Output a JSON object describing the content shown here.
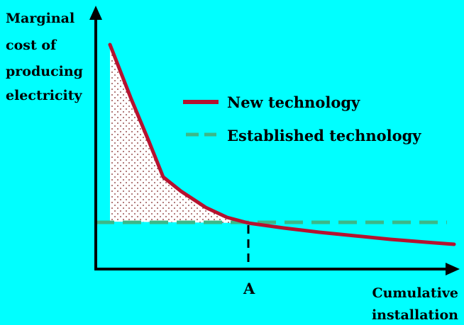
{
  "colors": {
    "background": "#00ffff",
    "new_technology": "#b5122f",
    "established_technology": "#3cb888",
    "axes": "#000000",
    "dot_fill": "#7a1f1f"
  },
  "y_axis_label_lines": [
    "Marginal",
    "cost of",
    "producing",
    "electricity"
  ],
  "x_axis_label_lines": [
    "Cumulative",
    "installation"
  ],
  "x_marker_label": "A",
  "legend": {
    "new_technology": "New technology",
    "established_technology": "Established technology"
  }
}
